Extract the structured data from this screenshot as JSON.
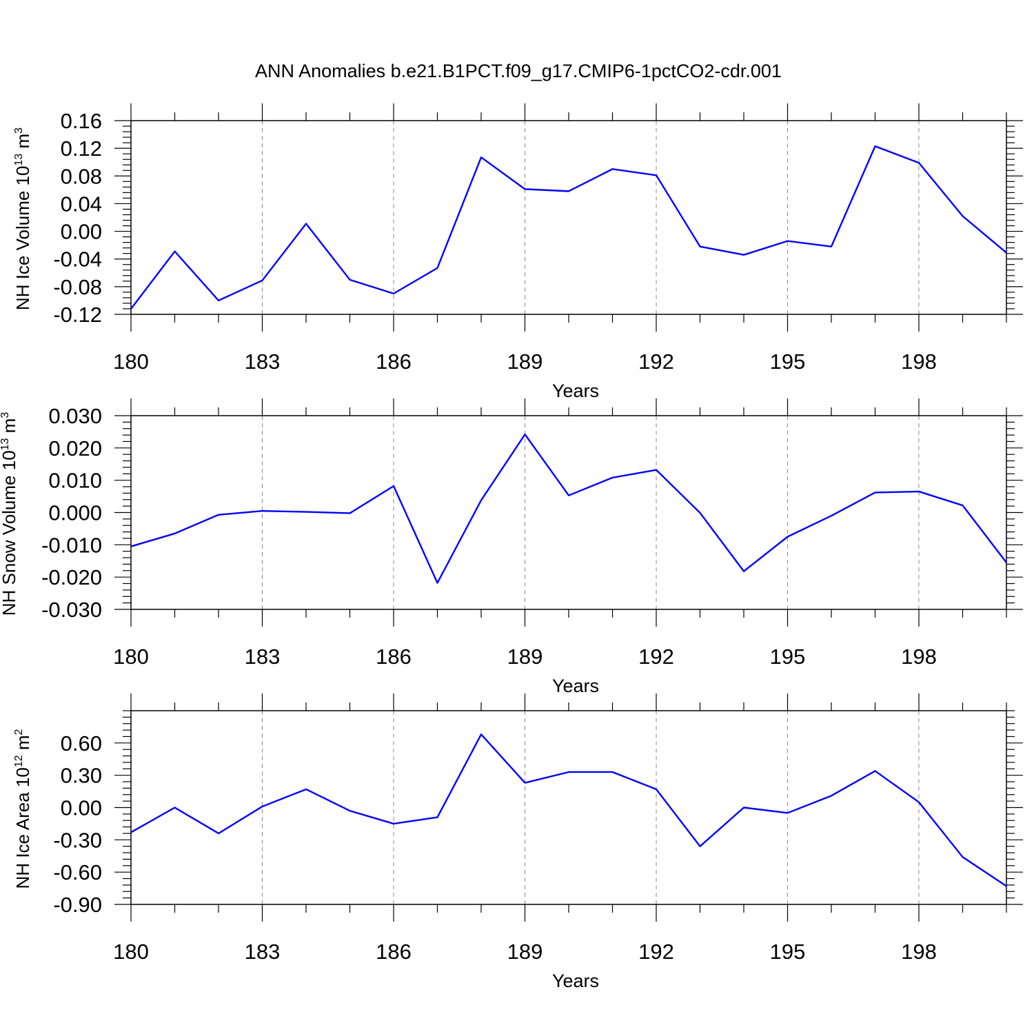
{
  "title": "ANN Anomalies b.e21.B1PCT.f09_g17.CMIP6-1pctCO2-cdr.001",
  "colors": {
    "line": "#0000ff",
    "axis": "#000000",
    "grid": "#888888"
  },
  "chart_data": [
    {
      "type": "line",
      "ylabel": {
        "text": "NH Ice Volume 10",
        "sup": "13",
        "unit": " m",
        "unit_sup": "3"
      },
      "xlabel": "Years",
      "x": [
        180,
        181,
        182,
        183,
        184,
        185,
        186,
        187,
        188,
        189,
        190,
        191,
        192,
        193,
        194,
        195,
        196,
        197,
        198,
        199,
        200
      ],
      "x_ticks": [
        "180",
        "183",
        "186",
        "189",
        "192",
        "195",
        "198"
      ],
      "xlim": [
        180,
        200
      ],
      "y_ticks": [
        "0.16",
        "0.12",
        "0.08",
        "0.04",
        "0.00",
        "-0.04",
        "-0.08",
        "-0.12"
      ],
      "ylim": [
        -0.12,
        0.16
      ],
      "series": [
        {
          "values": [
            -0.112,
            -0.029,
            -0.1,
            -0.071,
            0.011,
            -0.07,
            -0.09,
            -0.053,
            0.107,
            0.061,
            0.058,
            0.09,
            0.081,
            -0.022,
            -0.034,
            -0.014,
            -0.022,
            0.123,
            0.099,
            0.022,
            -0.031
          ]
        }
      ],
      "grid": "vertical dashed at major x ticks"
    },
    {
      "type": "line",
      "ylabel": {
        "text": "NH Snow Volume 10",
        "sup": "13",
        "unit": " m",
        "unit_sup": "3"
      },
      "xlabel": "Years",
      "x": [
        180,
        181,
        182,
        183,
        184,
        185,
        186,
        187,
        188,
        189,
        190,
        191,
        192,
        193,
        194,
        195,
        196,
        197,
        198,
        199,
        200
      ],
      "x_ticks": [
        "180",
        "183",
        "186",
        "189",
        "192",
        "195",
        "198"
      ],
      "xlim": [
        180,
        200
      ],
      "y_ticks": [
        "0.030",
        "0.020",
        "0.010",
        "0.000",
        "-0.010",
        "-0.020",
        "-0.030"
      ],
      "ylim": [
        -0.03,
        0.03
      ],
      "series": [
        {
          "values": [
            -0.0105,
            -0.0065,
            -0.0007,
            0.0005,
            0.0002,
            -0.0002,
            0.0082,
            -0.0218,
            0.0038,
            0.0242,
            0.0053,
            0.0108,
            0.0132,
            -0.0001,
            -0.0182,
            -0.0075,
            -0.001,
            0.0062,
            0.0065,
            0.0022,
            -0.0155
          ]
        }
      ],
      "grid": "vertical dashed at major x ticks"
    },
    {
      "type": "line",
      "ylabel": {
        "text": "NH Ice Area 10",
        "sup": "12",
        "unit": " m",
        "unit_sup": "2"
      },
      "xlabel": "Years",
      "x": [
        180,
        181,
        182,
        183,
        184,
        185,
        186,
        187,
        188,
        189,
        190,
        191,
        192,
        193,
        194,
        195,
        196,
        197,
        198,
        199,
        200
      ],
      "x_ticks": [
        "180",
        "183",
        "186",
        "189",
        "192",
        "195",
        "198"
      ],
      "xlim": [
        180,
        200
      ],
      "y_ticks": [
        "0.60",
        "0.30",
        "0.00",
        "-0.30",
        "-0.60",
        "-0.90"
      ],
      "ylim": [
        -0.9,
        0.9
      ],
      "series": [
        {
          "values": [
            -0.23,
            0.0,
            -0.24,
            0.01,
            0.17,
            -0.03,
            -0.15,
            -0.09,
            0.68,
            0.23,
            0.33,
            0.33,
            0.17,
            -0.36,
            0.0,
            -0.05,
            0.11,
            0.34,
            0.05,
            -0.46,
            -0.73
          ]
        }
      ],
      "grid": "vertical dashed at major x ticks"
    }
  ]
}
